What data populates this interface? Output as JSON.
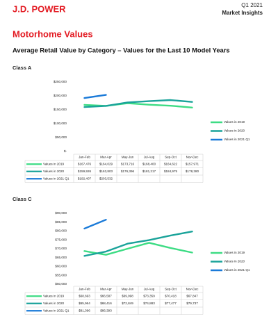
{
  "header": {
    "logo": "J.D. POWER",
    "period": "Q1 2021",
    "report": "Market Insights",
    "title": "Motorhome Values",
    "subtitle": "Average Retail Value by Category – Values for the Last 10 Model Years"
  },
  "chart_data": [
    {
      "type": "line",
      "title": "Class A",
      "categories": [
        "Jan-Feb",
        "Mar-Apr",
        "May-Jun",
        "Jul-Aug",
        "Sep-Oct",
        "Nov-Dec"
      ],
      "series": [
        {
          "name": "Values in 2019",
          "color": "#3ddc84",
          "values": [
            167476,
            164029,
            173716,
            168400,
            164622,
            157971
          ],
          "value_labels": [
            "$167,476",
            "$164,029",
            "$173,716",
            "$168,400",
            "$164,622",
            "$157,971"
          ]
        },
        {
          "name": "Values in 2020",
          "color": "#1aa39a",
          "values": [
            159926,
            163803,
            176396,
            181217,
            184975,
            178380
          ],
          "value_labels": [
            "$159,926",
            "$163,803",
            "$176,396",
            "$181,217",
            "$184,975",
            "$178,380"
          ]
        },
        {
          "name": "Values in 2021 Q1",
          "color": "#1a7ad8",
          "values": [
            192407,
            203532,
            null,
            null,
            null,
            null
          ],
          "value_labels": [
            "$192,407",
            "$203,532",
            null,
            null,
            null,
            null
          ]
        }
      ],
      "ylim": [
        0,
        250000
      ],
      "yticks": [
        {
          "value": 0,
          "label": "$-"
        },
        {
          "value": 50000,
          "label": "$50,000"
        },
        {
          "value": 100000,
          "label": "$100,000"
        },
        {
          "value": 150000,
          "label": "$150,000"
        },
        {
          "value": 200000,
          "label": "$200,000"
        },
        {
          "value": 250000,
          "label": "$250,000"
        }
      ],
      "legend": "right"
    },
    {
      "type": "line",
      "title": "Class C",
      "categories": [
        "Jan-Feb",
        "Mar-Apr",
        "May-Jun",
        "Jul-Aug",
        "Sep-Oct",
        "Nov-Dec"
      ],
      "series": [
        {
          "name": "Values in 2019",
          "color": "#3ddc84",
          "values": [
            68693,
            66587,
            69998,
            73359,
            70418,
            67847
          ],
          "value_labels": [
            "$68,693",
            "$66,587",
            "$69,998",
            "$73,359",
            "$70,418",
            "$67,847"
          ]
        },
        {
          "name": "Values in 2020",
          "color": "#1aa39a",
          "values": [
            65964,
            68416,
            72849,
            74883,
            77477,
            79737
          ],
          "value_labels": [
            "$65,964",
            "$68,416",
            "$72,849",
            "$74,883",
            "$77,477",
            "$79,737"
          ]
        },
        {
          "name": "Values in 2021 Q1",
          "color": "#1a7ad8",
          "values": [
            81396,
            86393,
            null,
            null,
            null,
            null
          ],
          "value_labels": [
            "$81,396",
            "$86,393",
            null,
            null,
            null,
            null
          ]
        }
      ],
      "ylim": [
        50000,
        90000
      ],
      "yticks": [
        {
          "value": 50000,
          "label": "$50,000"
        },
        {
          "value": 55000,
          "label": "$55,000"
        },
        {
          "value": 60000,
          "label": "$60,000"
        },
        {
          "value": 65000,
          "label": "$65,000"
        },
        {
          "value": 70000,
          "label": "$70,000"
        },
        {
          "value": 75000,
          "label": "$75,000"
        },
        {
          "value": 80000,
          "label": "$80,000"
        },
        {
          "value": 85000,
          "label": "$85,000"
        },
        {
          "value": 90000,
          "label": "$90,000"
        }
      ],
      "legend": "right"
    }
  ]
}
